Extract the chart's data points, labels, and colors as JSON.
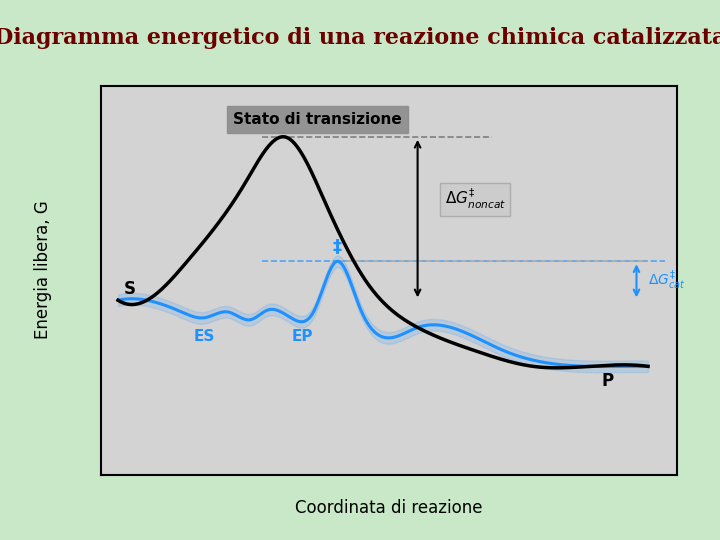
{
  "title": "Diagramma energetico di una reazione chimica catalizzata",
  "title_color": "#6b0000",
  "title_fontsize": 16,
  "bg_outer": "#c8e8c8",
  "bg_inner": "#d3d3d3",
  "ylabel": "Energia libera, G",
  "xlabel": "Coordinata di reazione",
  "label_fontsize": 13,
  "annotation_label_box": "Stato di transizione",
  "S_label": "S",
  "P_label": "P",
  "ES_label": "ES",
  "EP_label": "EP",
  "ddagger_label": "‡",
  "dG_noncat_label": "ΔG‡\nnoncat",
  "dG_cat_label": "ΔG‡\ncat"
}
